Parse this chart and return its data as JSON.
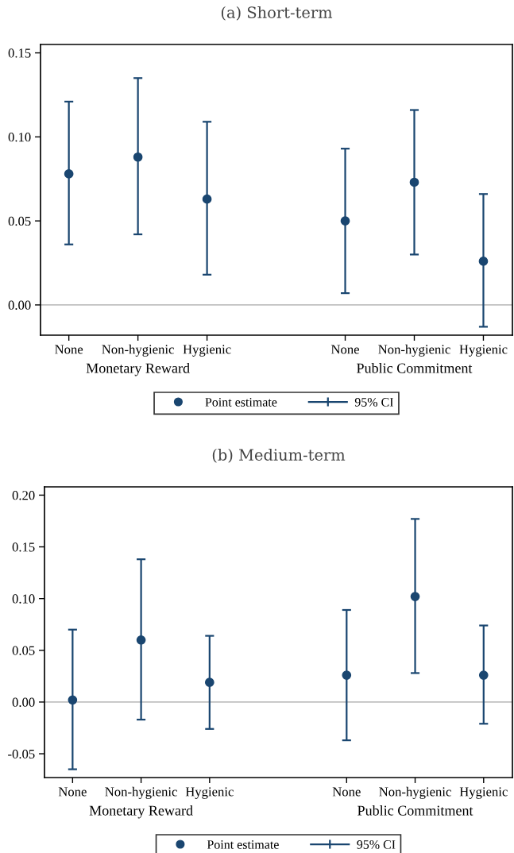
{
  "chart_data": [
    {
      "type": "scatter",
      "title": "(a) Short-term",
      "categories": [
        "None",
        "Non-hygienic",
        "Hygienic",
        null,
        "None",
        "Non-hygienic",
        "Hygienic"
      ],
      "series": [
        {
          "name": "Point estimate",
          "color": "#1a4670",
          "values": [
            0.078,
            0.088,
            0.063,
            null,
            0.05,
            0.073,
            0.026
          ],
          "errors": [
            [
              0.036,
              0.121
            ],
            [
              0.042,
              0.135
            ],
            [
              0.018,
              0.109
            ],
            null,
            [
              0.007,
              0.093
            ],
            [
              0.03,
              0.116
            ],
            [
              -0.013,
              0.066
            ]
          ]
        }
      ],
      "ylim": [
        -0.018,
        0.155
      ],
      "yticks": [
        {
          "value": 0,
          "label": "0.00"
        },
        {
          "value": 0.05,
          "label": "0.05"
        },
        {
          "value": 0.1,
          "label": "0.10"
        },
        {
          "value": 0.15,
          "label": "0.15"
        }
      ],
      "ref_lines": [
        {
          "axis": "y",
          "value": 0,
          "color": "#c0c0c0"
        }
      ],
      "annotations": [
        "Monetary Reward",
        "Public Commitment",
        "95% CI"
      ],
      "marker": "circle",
      "grid": false,
      "legend": "bottom"
    },
    {
      "type": "scatter",
      "title": "(b) Medium-term",
      "categories": [
        "None",
        "Non-hygienic",
        "Hygienic",
        null,
        "None",
        "Non-hygienic",
        "Hygienic"
      ],
      "series": [
        {
          "name": "Point estimate",
          "color": "#1a4670",
          "values": [
            0.002,
            0.06,
            0.019,
            null,
            0.026,
            0.102,
            0.026
          ],
          "errors": [
            [
              -0.065,
              0.07
            ],
            [
              -0.017,
              0.138
            ],
            [
              -0.026,
              0.064
            ],
            null,
            [
              -0.037,
              0.089
            ],
            [
              0.028,
              0.177
            ],
            [
              -0.021,
              0.074
            ]
          ]
        }
      ],
      "ylim": [
        -0.073,
        0.208
      ],
      "yticks": [
        {
          "value": -0.05,
          "label": "-0.05"
        },
        {
          "value": 0,
          "label": "0.00"
        },
        {
          "value": 0.05,
          "label": "0.05"
        },
        {
          "value": 0.1,
          "label": "0.10"
        },
        {
          "value": 0.15,
          "label": "0.15"
        },
        {
          "value": 0.2,
          "label": "0.20"
        }
      ],
      "ref_lines": [
        {
          "axis": "y",
          "value": 0,
          "color": "#c0c0c0"
        }
      ],
      "annotations": [
        "Monetary Reward",
        "Public Commitment",
        "95% CI"
      ],
      "marker": "circle",
      "grid": false,
      "legend": "bottom"
    }
  ]
}
